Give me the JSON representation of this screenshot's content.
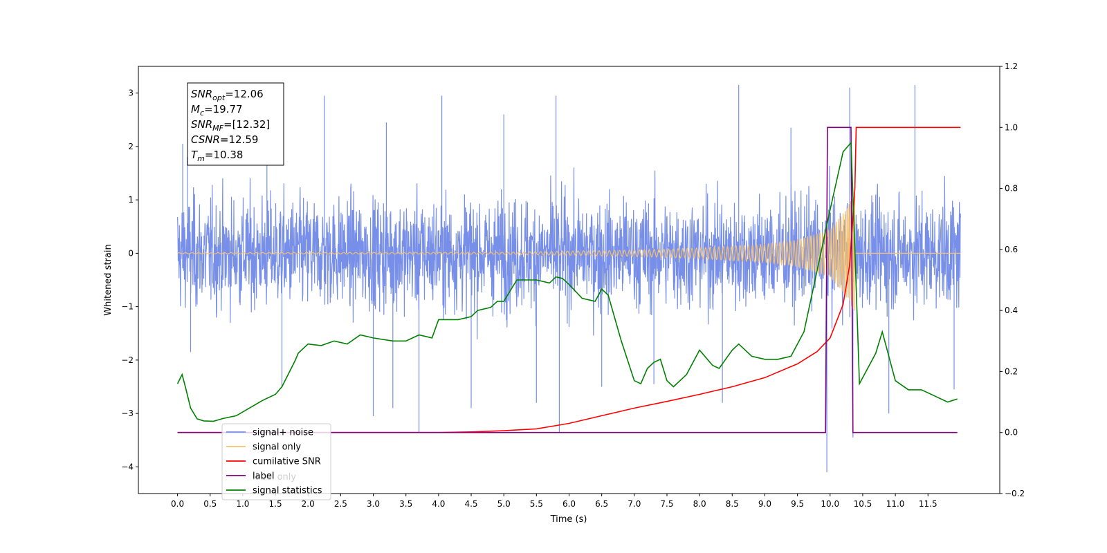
{
  "chart_data": {
    "type": "line",
    "xlabel": "Time (s)",
    "ylabel": "Whitened strain",
    "ylabel_right": "",
    "xlim": [
      -0.6,
      12.6
    ],
    "ylim": [
      -4.5,
      3.5
    ],
    "ylim_right": [
      -0.2,
      1.2
    ],
    "x_ticks": [
      "0.0",
      "0.5",
      "1.0",
      "1.5",
      "2.0",
      "2.5",
      "3.0",
      "3.5",
      "4.0",
      "4.5",
      "5.0",
      "5.5",
      "6.0",
      "6.5",
      "7.0",
      "7.5",
      "8.0",
      "8.5",
      "9.0",
      "9.5",
      "10.0",
      "10.5",
      "11.0",
      "11.5"
    ],
    "y_ticks": [
      "3",
      "2",
      "1",
      "0",
      "−1",
      "−2",
      "−3",
      "−4"
    ],
    "y_ticks_right": [
      "1.2",
      "1.0",
      "0.8",
      "0.6",
      "0.4",
      "0.2",
      "0.0",
      "−0.2"
    ],
    "annotation": {
      "lines": [
        {
          "sym": "SNR",
          "sub": "opt",
          "val": "=12.06"
        },
        {
          "sym": "M",
          "sub": "c",
          "val": "=19.77"
        },
        {
          "sym": "SNR",
          "sub": "MF",
          "val": "=[12.32]"
        },
        {
          "sym": "CSNR",
          "sub": "",
          "val": "=12.59"
        },
        {
          "sym": "T",
          "sub": "m",
          "val": "=10.38"
        }
      ]
    },
    "legend": {
      "placement": "lower-left",
      "entries": [
        {
          "label": "signal+ noise",
          "color": "#778fe8"
        },
        {
          "label": "signal only",
          "color": "#f5c070"
        },
        {
          "label": "cumilative SNR",
          "color": "#ff0000"
        },
        {
          "label": "label",
          "color": "#800080"
        },
        {
          "label": "signal statistics",
          "color": "#008000"
        }
      ],
      "ghost_text": "label only"
    },
    "series": [
      {
        "name": "signal+ noise",
        "axis": "left",
        "color": "#778fe8",
        "style": "dense noise",
        "x_range": [
          0.0,
          12.0
        ],
        "typical_band": [
          -1.5,
          1.5
        ],
        "peak_samples": [
          {
            "x": 0.08,
            "y": 2.05
          },
          {
            "x": 0.15,
            "y": 1.8
          },
          {
            "x": 0.2,
            "y": -1.85
          },
          {
            "x": 1.37,
            "y": 2.25
          },
          {
            "x": 1.6,
            "y": -2.5
          },
          {
            "x": 2.25,
            "y": 2.95
          },
          {
            "x": 3.0,
            "y": -3.05
          },
          {
            "x": 3.2,
            "y": 2.45
          },
          {
            "x": 3.3,
            "y": -2.9
          },
          {
            "x": 3.7,
            "y": -3.35
          },
          {
            "x": 4.05,
            "y": 2.95
          },
          {
            "x": 4.5,
            "y": -2.9
          },
          {
            "x": 5.0,
            "y": 2.6
          },
          {
            "x": 5.5,
            "y": -2.8
          },
          {
            "x": 5.8,
            "y": 2.95
          },
          {
            "x": 5.85,
            "y": -3.35
          },
          {
            "x": 6.5,
            "y": -2.5
          },
          {
            "x": 7.3,
            "y": -2.45
          },
          {
            "x": 8.35,
            "y": -2.8
          },
          {
            "x": 8.6,
            "y": 3.15
          },
          {
            "x": 9.4,
            "y": 2.35
          },
          {
            "x": 9.95,
            "y": -4.1
          },
          {
            "x": 10.3,
            "y": 3.1
          },
          {
            "x": 10.35,
            "y": -3.45
          },
          {
            "x": 10.9,
            "y": -3.0
          },
          {
            "x": 11.3,
            "y": 3.15
          },
          {
            "x": 11.9,
            "y": -2.55
          }
        ]
      },
      {
        "name": "signal only",
        "axis": "left",
        "color": "#f5c070",
        "style": "chirp",
        "x_range": [
          0.0,
          12.0
        ],
        "merger_time": 10.38,
        "amplitude_samples": [
          {
            "x": 0.0,
            "y": 0.01
          },
          {
            "x": 5.0,
            "y": 0.02
          },
          {
            "x": 6.0,
            "y": 0.04
          },
          {
            "x": 7.0,
            "y": 0.06
          },
          {
            "x": 8.0,
            "y": 0.1
          },
          {
            "x": 9.0,
            "y": 0.17
          },
          {
            "x": 9.5,
            "y": 0.25
          },
          {
            "x": 10.0,
            "y": 0.45
          },
          {
            "x": 10.2,
            "y": 0.75
          },
          {
            "x": 10.38,
            "y": 1.1
          }
        ]
      },
      {
        "name": "cumilative SNR",
        "axis": "right",
        "color": "#ff0000",
        "x": [
          0.0,
          4.0,
          4.5,
          5.0,
          5.5,
          6.0,
          6.5,
          7.0,
          7.5,
          8.0,
          8.5,
          9.0,
          9.5,
          9.8,
          10.0,
          10.2,
          10.3,
          10.38,
          10.4,
          10.6,
          11.0,
          12.0
        ],
        "values": [
          0.0,
          0.0,
          0.002,
          0.006,
          0.012,
          0.03,
          0.055,
          0.08,
          0.102,
          0.125,
          0.15,
          0.18,
          0.225,
          0.265,
          0.31,
          0.42,
          0.55,
          0.8,
          1.0,
          1.0,
          1.0,
          1.0
        ]
      },
      {
        "name": "label",
        "axis": "right",
        "color": "#800080",
        "x": [
          0.0,
          9.93,
          9.96,
          10.32,
          10.35,
          11.95
        ],
        "values": [
          0.0,
          0.0,
          1.0,
          1.0,
          0.0,
          0.0
        ]
      },
      {
        "name": "signal statistics",
        "axis": "right",
        "color": "#008000",
        "x": [
          0.0,
          0.07,
          0.12,
          0.2,
          0.3,
          0.4,
          0.55,
          0.7,
          0.9,
          1.1,
          1.3,
          1.5,
          1.6,
          1.8,
          1.85,
          2.0,
          2.2,
          2.4,
          2.6,
          2.8,
          3.0,
          3.3,
          3.5,
          3.7,
          3.9,
          4.0,
          4.1,
          4.3,
          4.5,
          4.6,
          4.8,
          4.9,
          5.0,
          5.2,
          5.4,
          5.5,
          5.7,
          5.8,
          5.9,
          6.0,
          6.2,
          6.4,
          6.5,
          6.6,
          6.8,
          7.0,
          7.1,
          7.2,
          7.3,
          7.4,
          7.5,
          7.6,
          7.8,
          8.0,
          8.2,
          8.3,
          8.5,
          8.6,
          8.8,
          9.0,
          9.2,
          9.4,
          9.6,
          9.8,
          10.0,
          10.2,
          10.32,
          10.38,
          10.45,
          10.6,
          10.7,
          10.8,
          11.0,
          11.2,
          11.4,
          11.6,
          11.8,
          11.95
        ],
        "values": [
          0.16,
          0.19,
          0.15,
          0.08,
          0.045,
          0.038,
          0.037,
          0.046,
          0.055,
          0.08,
          0.105,
          0.125,
          0.15,
          0.235,
          0.26,
          0.29,
          0.285,
          0.3,
          0.29,
          0.32,
          0.31,
          0.3,
          0.3,
          0.32,
          0.31,
          0.37,
          0.37,
          0.37,
          0.38,
          0.4,
          0.41,
          0.43,
          0.43,
          0.5,
          0.5,
          0.5,
          0.49,
          0.51,
          0.505,
          0.485,
          0.44,
          0.43,
          0.47,
          0.45,
          0.3,
          0.17,
          0.16,
          0.21,
          0.23,
          0.24,
          0.17,
          0.15,
          0.19,
          0.27,
          0.22,
          0.21,
          0.27,
          0.29,
          0.25,
          0.24,
          0.24,
          0.25,
          0.33,
          0.53,
          0.73,
          0.92,
          0.95,
          0.6,
          0.16,
          0.22,
          0.26,
          0.33,
          0.17,
          0.14,
          0.14,
          0.12,
          0.1,
          0.11
        ]
      }
    ]
  }
}
